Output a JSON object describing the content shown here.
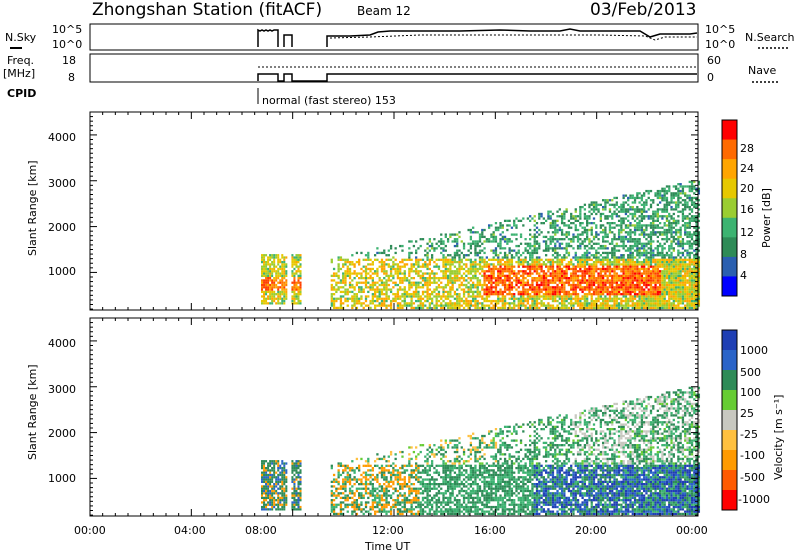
{
  "header": {
    "title": "Zhongshan Station (fitACF)",
    "beam": "Beam 12",
    "date": "03/Feb/2013"
  },
  "summary": {
    "nsky_label": "N.Sky",
    "nsearch_label": "N.Search",
    "freq_label": "Freq.",
    "freq_unit": "[MHz]",
    "nave_label": "Nave",
    "cpid_label": "CPID",
    "cpid_text": "normal (fast stereo) 153",
    "noise_ticks": [
      "10^5",
      "10^0"
    ],
    "noise_right_ticks": [
      "10^5",
      "10^0"
    ],
    "freq_ticks": [
      "18",
      "8"
    ],
    "nave_ticks": [
      "60",
      "0"
    ]
  },
  "x_axis": {
    "label": "Time UT",
    "ticks": [
      "00:00",
      "04:00",
      "08:00",
      "12:00",
      "16:00",
      "20:00",
      "00:00"
    ]
  },
  "panels": {
    "power": {
      "ylabel": "Slant Range [km]",
      "yticks": [
        "4000",
        "3000",
        "2000",
        "1000"
      ],
      "cbar_label": "Power [dB]",
      "cbar_ticks": [
        "28",
        "24",
        "20",
        "16",
        "12",
        "8",
        "4"
      ],
      "cbar_colors": [
        "#ff0000",
        "#ff6a00",
        "#ffa500",
        "#e6c800",
        "#9acd32",
        "#3cb371",
        "#2e8b57",
        "#2a5fb0",
        "#0000ff"
      ]
    },
    "velocity": {
      "ylabel": "Slant Range [km]",
      "yticks": [
        "4000",
        "3000",
        "2000",
        "1000"
      ],
      "cbar_label": "Velocity [m s⁻¹]",
      "cbar_ticks": [
        "1000",
        "500",
        "100",
        "25",
        "-25",
        "-100",
        "-500",
        "-1000"
      ],
      "cbar_colors": [
        "#1f3fb4",
        "#2a64c8",
        "#2e8b57",
        "#66cc33",
        "#c8c8c0",
        "#ffc040",
        "#ff9a00",
        "#ff5a00",
        "#ff0000"
      ]
    }
  },
  "chart_data": {
    "type": "heatmap",
    "title": "Zhongshan Station (fitACF)",
    "x_range": [
      "00:00",
      "00:00"
    ],
    "y_range_km": [
      180,
      4500
    ],
    "echo_blocks": [
      {
        "t0": "06:45",
        "t1": "07:45",
        "r0": 300,
        "r1": 1400,
        "power_db": 14,
        "velocity": 100
      },
      {
        "t0": "07:55",
        "t1": "08:20",
        "r0": 300,
        "r1": 1500,
        "power_db": 14,
        "velocity": 100
      },
      {
        "t0": "09:30",
        "t1": "23:59",
        "r0": 200,
        "r1": 3100,
        "power_db": 16,
        "velocity": 200
      }
    ]
  }
}
